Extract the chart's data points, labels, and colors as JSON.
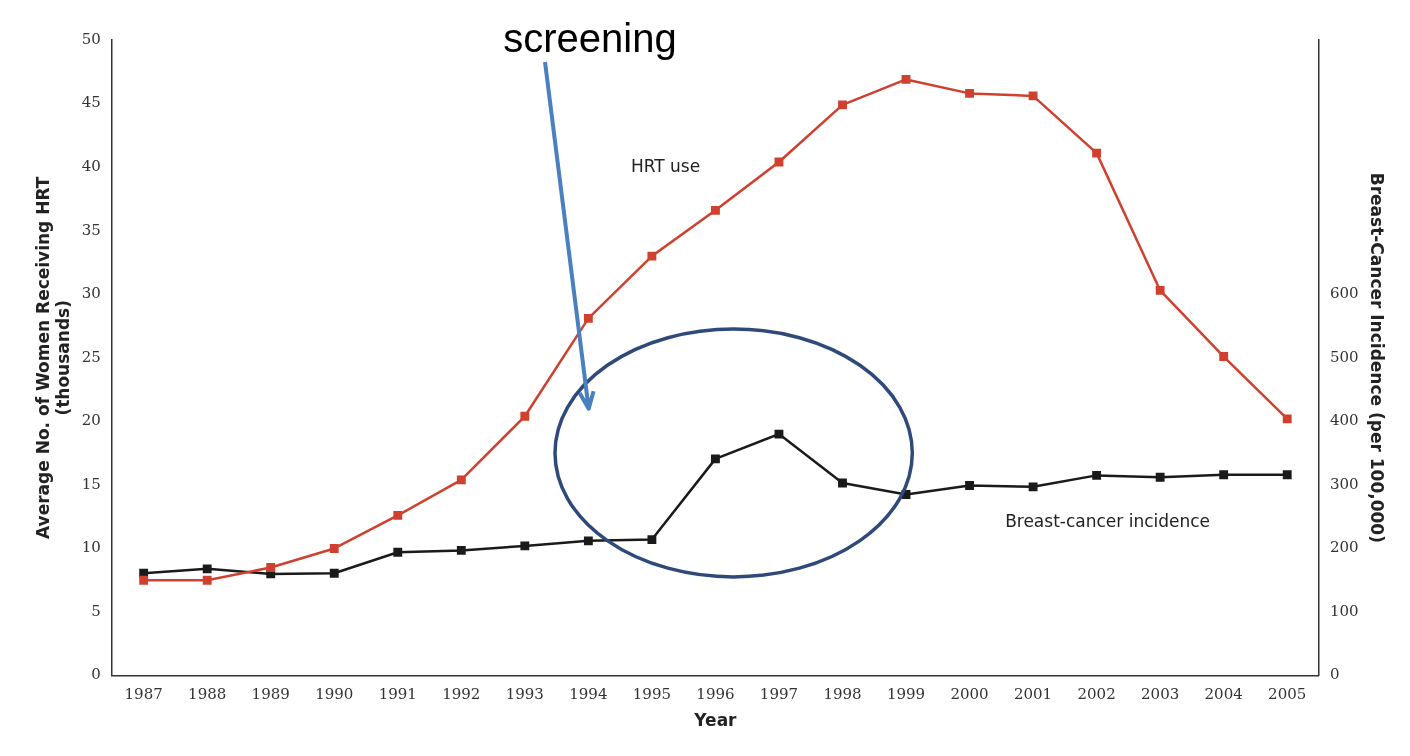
{
  "chart_data": {
    "type": "line",
    "xlabel": "Year",
    "ylabel": "Average No. of Women Receiving HRT\n(thousands)",
    "y2label": "Breast-Cancer Incidence (per 100,000)",
    "categories": [
      "1987",
      "1988",
      "1989",
      "1990",
      "1991",
      "1992",
      "1993",
      "1994",
      "1995",
      "1996",
      "1997",
      "1998",
      "1999",
      "2000",
      "2001",
      "2002",
      "2003",
      "2004",
      "2005"
    ],
    "series": [
      {
        "name": "HRT use",
        "color": "#d0402e",
        "values": [
          7.5,
          7.5,
          8.5,
          10.0,
          12.6,
          15.4,
          20.4,
          28.1,
          33.0,
          36.6,
          40.4,
          44.9,
          46.9,
          45.8,
          45.6,
          41.1,
          30.3,
          25.1,
          20.2
        ]
      },
      {
        "name": "Breast-cancer incidence",
        "color": "#1a1a1a",
        "axis": "y2",
        "values": [
          161,
          168,
          160,
          161,
          194,
          197,
          204,
          212,
          214,
          341,
          380,
          303,
          285,
          299,
          297,
          315,
          312,
          316,
          316
        ]
      }
    ],
    "ylim": [
      0,
      50
    ],
    "yticks": [
      0,
      5,
      10,
      15,
      20,
      25,
      30,
      35,
      40,
      45,
      50
    ],
    "y2lim": [
      0,
      1000
    ],
    "y2ticks": [
      0,
      100,
      200,
      300,
      400,
      500,
      600
    ],
    "annotations": [
      "screening"
    ],
    "marker": "square",
    "grid": false,
    "legend": false
  }
}
